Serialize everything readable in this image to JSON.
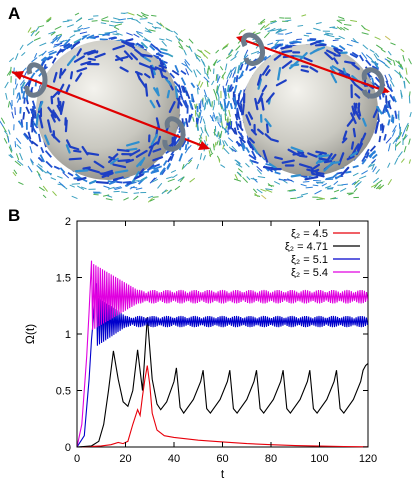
{
  "panels": {
    "a_label": "A",
    "b_label": "B"
  },
  "chart_data": {
    "type": "line",
    "title": "",
    "xlabel": "t",
    "ylabel": "Ω(t)",
    "xlim": [
      0,
      120
    ],
    "ylim": [
      0,
      2
    ],
    "xticks": [
      0,
      20,
      40,
      60,
      80,
      100,
      120
    ],
    "yticks": [
      0,
      0.5,
      1,
      1.5,
      2
    ],
    "grid": false,
    "legend_position": "top-right",
    "series": [
      {
        "name": "ξ₂ = 4.5",
        "color": "#e8000b",
        "points": [
          [
            0,
            0
          ],
          [
            6,
            0.005
          ],
          [
            10,
            0.01
          ],
          [
            14,
            0.02
          ],
          [
            17,
            0.04
          ],
          [
            19,
            0.03
          ],
          [
            21,
            0.05
          ],
          [
            23,
            0.2
          ],
          [
            25,
            0.33
          ],
          [
            26,
            0.28
          ],
          [
            27,
            0.45
          ],
          [
            28,
            0.6
          ],
          [
            29,
            0.72
          ],
          [
            30,
            0.55
          ],
          [
            31,
            0.3
          ],
          [
            33,
            0.15
          ],
          [
            36,
            0.1
          ],
          [
            40,
            0.085
          ],
          [
            50,
            0.06
          ],
          [
            60,
            0.045
          ],
          [
            70,
            0.03
          ],
          [
            80,
            0.02
          ],
          [
            90,
            0.012
          ],
          [
            100,
            0.008
          ],
          [
            110,
            0.004
          ],
          [
            120,
            0.002
          ]
        ]
      },
      {
        "name": "ξ₂ = 4.71",
        "color": "#000000",
        "points": [
          [
            0,
            0
          ],
          [
            6,
            0.01
          ],
          [
            9,
            0.05
          ],
          [
            11,
            0.2
          ],
          [
            13,
            0.5
          ],
          [
            15,
            0.85
          ],
          [
            17,
            0.6
          ],
          [
            19,
            0.4
          ],
          [
            21,
            0.36
          ],
          [
            23,
            0.5
          ],
          [
            25,
            0.86
          ],
          [
            27,
            0.5
          ],
          [
            29,
            1.15
          ],
          [
            31,
            0.6
          ],
          [
            33,
            0.38
          ],
          [
            34.5,
            0.33
          ],
          [
            37,
            0.4
          ],
          [
            40,
            0.58
          ],
          [
            41,
            0.7
          ],
          [
            42.5,
            0.35
          ],
          [
            44,
            0.3
          ],
          [
            48,
            0.42
          ],
          [
            51,
            0.58
          ],
          [
            52,
            0.68
          ],
          [
            53.5,
            0.34
          ],
          [
            55,
            0.3
          ],
          [
            59,
            0.42
          ],
          [
            62,
            0.58
          ],
          [
            63,
            0.68
          ],
          [
            64.5,
            0.34
          ],
          [
            66,
            0.3
          ],
          [
            70,
            0.42
          ],
          [
            73,
            0.58
          ],
          [
            74,
            0.68
          ],
          [
            75.5,
            0.34
          ],
          [
            77,
            0.3
          ],
          [
            81,
            0.42
          ],
          [
            84,
            0.58
          ],
          [
            85,
            0.68
          ],
          [
            86.5,
            0.34
          ],
          [
            88,
            0.3
          ],
          [
            92,
            0.42
          ],
          [
            95,
            0.58
          ],
          [
            96,
            0.68
          ],
          [
            97.5,
            0.34
          ],
          [
            99,
            0.3
          ],
          [
            103,
            0.42
          ],
          [
            106,
            0.58
          ],
          [
            107,
            0.68
          ],
          [
            108.5,
            0.34
          ],
          [
            110,
            0.3
          ],
          [
            114,
            0.42
          ],
          [
            117,
            0.58
          ],
          [
            118,
            0.68
          ],
          [
            119,
            0.72
          ],
          [
            120,
            0.74
          ]
        ]
      },
      {
        "name": "ξ₂ = 5.1",
        "color": "#0000cc",
        "envelope": {
          "rise": [
            [
              0,
              0
            ],
            [
              3,
              0.1
            ],
            [
              5,
              0.6
            ],
            [
              6,
              0.95
            ],
            [
              7,
              1.2
            ],
            [
              8,
              1.45
            ]
          ],
          "center": 1.11,
          "amplitude_start": 0.22,
          "amplitude_end": 0.05,
          "settle_t": 20,
          "period": 0.85,
          "t_start": 8,
          "t_end": 120
        }
      },
      {
        "name": "ξ₂ = 5.4",
        "color": "#e000e0",
        "envelope": {
          "rise": [
            [
              0,
              0
            ],
            [
              2,
              0.2
            ],
            [
              4,
              0.8
            ],
            [
              5,
              1.2
            ],
            [
              6,
              1.65
            ]
          ],
          "center": 1.33,
          "amplitude_start": 0.3,
          "amplitude_end": 0.06,
          "settle_t": 25,
          "period": 0.9,
          "t_start": 6,
          "t_end": 120
        }
      }
    ]
  }
}
